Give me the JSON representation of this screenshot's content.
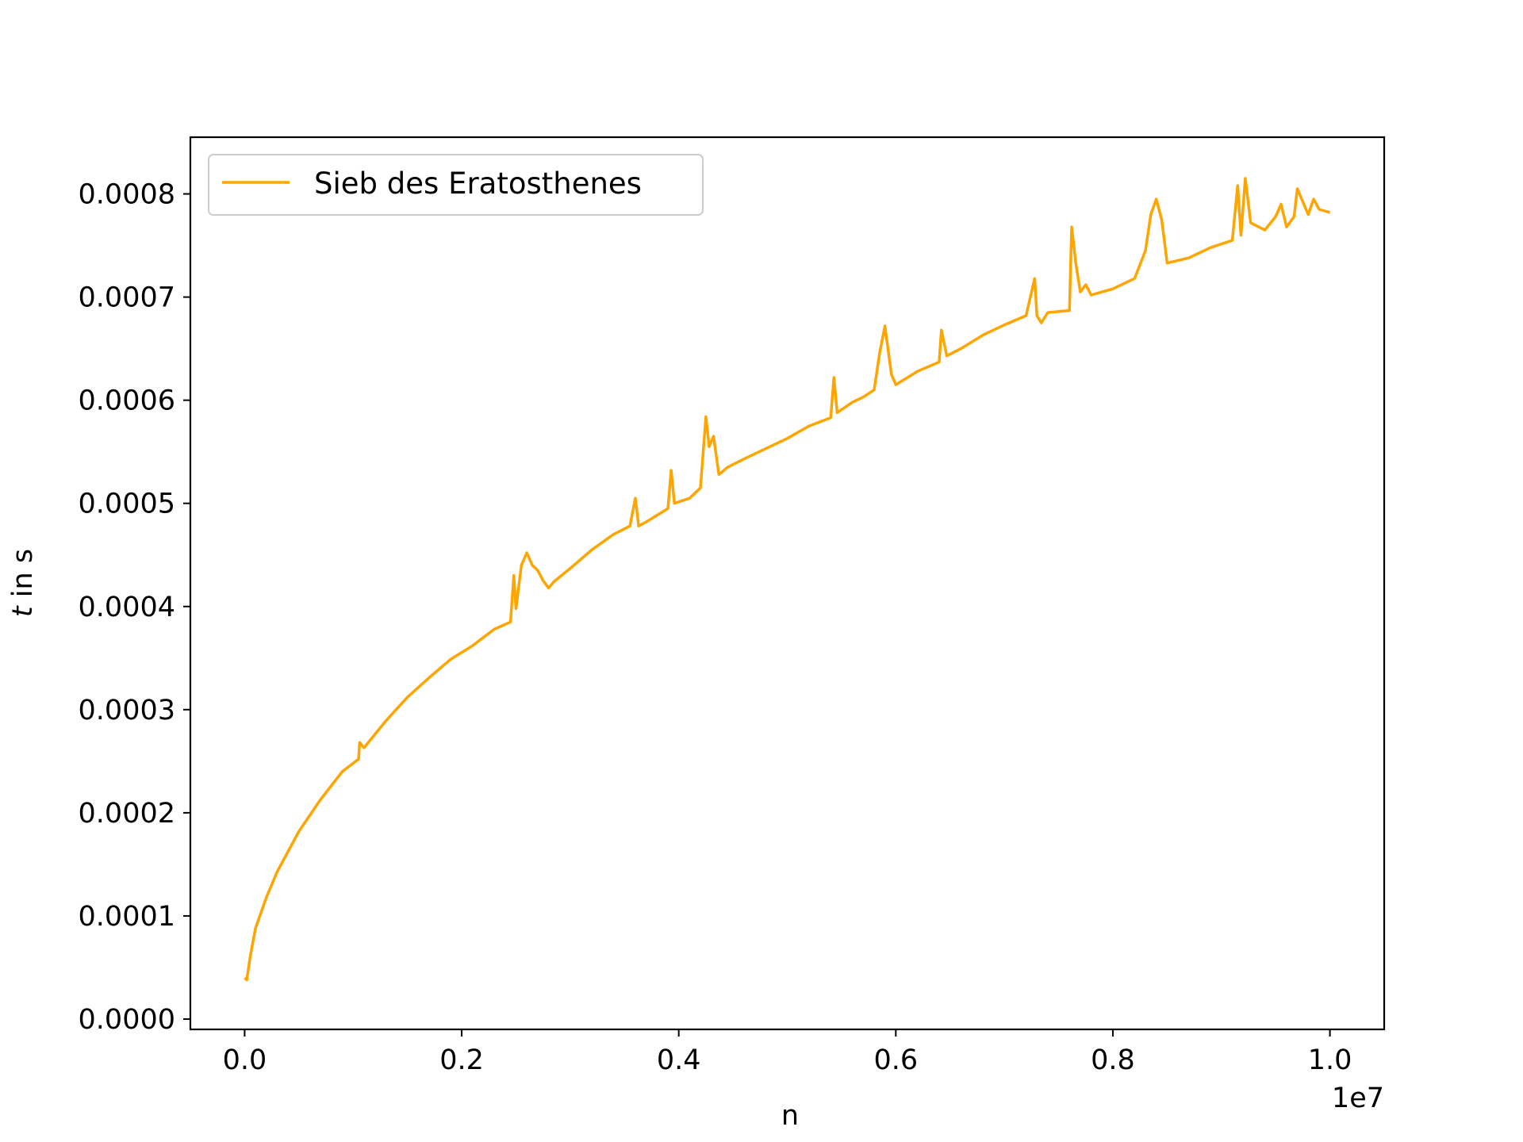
{
  "chart_data": {
    "type": "line",
    "title": "",
    "xlabel": "n",
    "ylabel_italic": "t",
    "ylabel_rest": " in s",
    "x_offset_label": "1e7",
    "xlim": [
      -0.05,
      1.05
    ],
    "ylim": [
      -1e-05,
      0.000855
    ],
    "grid": false,
    "legend_position": "upper left",
    "x_ticks": [
      0.0,
      0.2,
      0.4,
      0.6,
      0.8,
      1.0
    ],
    "x_tick_labels": [
      "0.0",
      "0.2",
      "0.4",
      "0.6",
      "0.8",
      "1.0"
    ],
    "y_ticks": [
      0.0,
      0.0001,
      0.0002,
      0.0003,
      0.0004,
      0.0005,
      0.0006,
      0.0007,
      0.0008
    ],
    "y_tick_labels": [
      "0.0000",
      "0.0001",
      "0.0002",
      "0.0003",
      "0.0004",
      "0.0005",
      "0.0006",
      "0.0007",
      "0.0008"
    ],
    "series": [
      {
        "name": "Sieb des Eratosthenes",
        "color": "#ffa500",
        "x": [
          0.0,
          0.002,
          0.005,
          0.01,
          0.02,
          0.03,
          0.05,
          0.07,
          0.09,
          0.105,
          0.106,
          0.11,
          0.13,
          0.15,
          0.17,
          0.19,
          0.21,
          0.23,
          0.245,
          0.248,
          0.25,
          0.255,
          0.26,
          0.265,
          0.27,
          0.275,
          0.28,
          0.285,
          0.3,
          0.32,
          0.34,
          0.355,
          0.36,
          0.363,
          0.37,
          0.39,
          0.393,
          0.396,
          0.41,
          0.42,
          0.425,
          0.428,
          0.432,
          0.437,
          0.445,
          0.46,
          0.48,
          0.5,
          0.52,
          0.54,
          0.543,
          0.546,
          0.56,
          0.57,
          0.58,
          0.585,
          0.59,
          0.596,
          0.6,
          0.62,
          0.64,
          0.642,
          0.647,
          0.66,
          0.68,
          0.7,
          0.72,
          0.728,
          0.73,
          0.734,
          0.74,
          0.76,
          0.762,
          0.766,
          0.77,
          0.775,
          0.78,
          0.8,
          0.82,
          0.83,
          0.835,
          0.84,
          0.845,
          0.85,
          0.87,
          0.89,
          0.91,
          0.915,
          0.918,
          0.922,
          0.927,
          0.94,
          0.95,
          0.955,
          0.96,
          0.967,
          0.97,
          0.98,
          0.985,
          0.99,
          1.0
        ],
        "y": [
          4e-05,
          3.8e-05,
          6e-05,
          8.8e-05,
          0.000118,
          0.000143,
          0.000182,
          0.000213,
          0.00024,
          0.000252,
          0.000268,
          0.000263,
          0.000289,
          0.000312,
          0.000331,
          0.000349,
          0.000362,
          0.000378,
          0.000385,
          0.00043,
          0.000398,
          0.00044,
          0.000452,
          0.00044,
          0.000435,
          0.000425,
          0.000418,
          0.000424,
          0.000437,
          0.000455,
          0.00047,
          0.000478,
          0.000505,
          0.000478,
          0.000482,
          0.000495,
          0.000532,
          0.0005,
          0.000505,
          0.000515,
          0.000584,
          0.000555,
          0.000565,
          0.000528,
          0.000535,
          0.000543,
          0.000553,
          0.000563,
          0.000575,
          0.000583,
          0.000622,
          0.000588,
          0.000598,
          0.000603,
          0.00061,
          0.000645,
          0.000672,
          0.000625,
          0.000615,
          0.000628,
          0.000637,
          0.000668,
          0.000643,
          0.00065,
          0.000663,
          0.000673,
          0.000682,
          0.000718,
          0.000682,
          0.000675,
          0.000685,
          0.000687,
          0.000768,
          0.000732,
          0.000705,
          0.000712,
          0.000702,
          0.000708,
          0.000718,
          0.000745,
          0.00078,
          0.000795,
          0.000775,
          0.000733,
          0.000738,
          0.000748,
          0.000755,
          0.000808,
          0.00076,
          0.000815,
          0.000772,
          0.000765,
          0.000778,
          0.00079,
          0.000768,
          0.000778,
          0.000805,
          0.00078,
          0.000795,
          0.000785,
          0.000782
        ]
      }
    ]
  }
}
